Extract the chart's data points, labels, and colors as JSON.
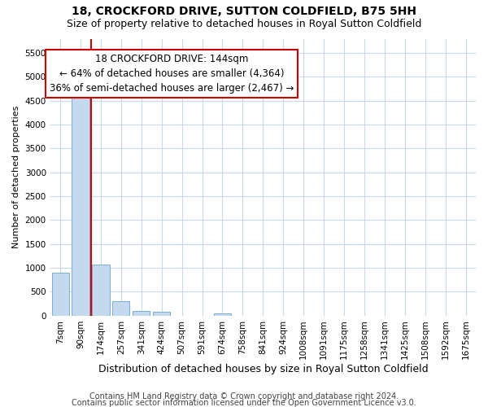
{
  "title": "18, CROCKFORD DRIVE, SUTTON COLDFIELD, B75 5HH",
  "subtitle": "Size of property relative to detached houses in Royal Sutton Coldfield",
  "xlabel": "Distribution of detached houses by size in Royal Sutton Coldfield",
  "ylabel": "Number of detached properties",
  "footnote1": "Contains HM Land Registry data © Crown copyright and database right 2024.",
  "footnote2": "Contains public sector information licensed under the Open Government Licence v3.0.",
  "categories": [
    "7sqm",
    "90sqm",
    "174sqm",
    "257sqm",
    "341sqm",
    "424sqm",
    "507sqm",
    "591sqm",
    "674sqm",
    "758sqm",
    "841sqm",
    "924sqm",
    "1008sqm",
    "1091sqm",
    "1175sqm",
    "1258sqm",
    "1341sqm",
    "1425sqm",
    "1508sqm",
    "1592sqm",
    "1675sqm"
  ],
  "values": [
    900,
    4600,
    1075,
    300,
    100,
    80,
    0,
    0,
    55,
    0,
    0,
    0,
    0,
    0,
    0,
    0,
    0,
    0,
    0,
    0,
    0
  ],
  "bar_color": "#c5d9ee",
  "bar_edge_color": "#7bafd4",
  "property_line_color": "#cc0000",
  "annotation_line1": "18 CROCKFORD DRIVE: 144sqm",
  "annotation_line2": "← 64% of detached houses are smaller (4,364)",
  "annotation_line3": "36% of semi-detached houses are larger (2,467) →",
  "annotation_box_color": "#ffffff",
  "annotation_box_edge": "#cc0000",
  "ylim_max": 5800,
  "yticks": [
    0,
    500,
    1000,
    1500,
    2000,
    2500,
    3000,
    3500,
    4000,
    4500,
    5000,
    5500
  ],
  "title_fontsize": 10,
  "subtitle_fontsize": 9,
  "xlabel_fontsize": 9,
  "ylabel_fontsize": 8,
  "tick_fontsize": 7.5,
  "annotation_fontsize": 8.5,
  "footnote_fontsize": 7,
  "background_color": "#ffffff",
  "grid_color": "#c8d8ea"
}
